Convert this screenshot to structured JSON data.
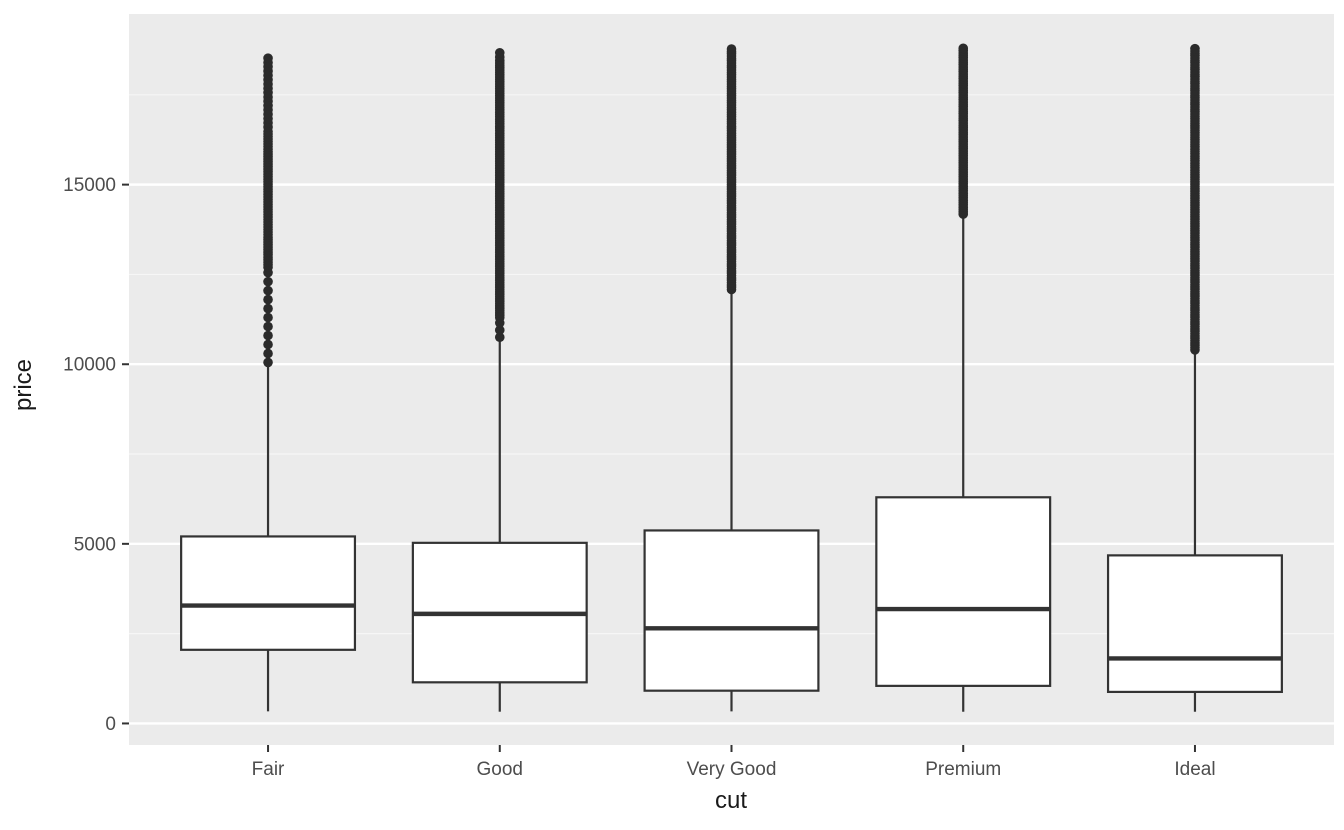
{
  "chart_data": {
    "type": "boxplot",
    "title": "",
    "xlabel": "cut",
    "ylabel": "price",
    "categories": [
      "Fair",
      "Good",
      "Very Good",
      "Premium",
      "Ideal"
    ],
    "y_ticks": [
      0,
      5000,
      10000,
      15000
    ],
    "ylim": [
      -600,
      19750
    ],
    "grid": {
      "major": [
        0,
        5000,
        10000,
        15000
      ],
      "minor": [
        2500,
        7500,
        12500,
        17500
      ]
    },
    "series": [
      {
        "category": "Fair",
        "lower_whisker": 337,
        "q1": 2050,
        "median": 3282,
        "q3": 5206,
        "upper_whisker": 9937,
        "outlier_segments": [
          {
            "from": 10050,
            "to": 12600,
            "gap": 250
          },
          {
            "from": 12700,
            "to": 16500,
            "gap": 70
          },
          {
            "from": 16600,
            "to": 18600,
            "gap": 120
          }
        ]
      },
      {
        "category": "Good",
        "lower_whisker": 327,
        "q1": 1145,
        "median": 3050,
        "q3": 5028,
        "upper_whisker": 10838,
        "outlier_segments": [
          {
            "from": 10750,
            "to": 11200,
            "gap": 200
          },
          {
            "from": 11300,
            "to": 18500,
            "gap": 65
          },
          {
            "from": 18550,
            "to": 18788,
            "gap": 120
          }
        ]
      },
      {
        "category": "Very Good",
        "lower_whisker": 336,
        "q1": 912,
        "median": 2648,
        "q3": 5373,
        "upper_whisker": 12061,
        "outlier_segments": [
          {
            "from": 12080,
            "to": 18818,
            "gap": 65
          }
        ]
      },
      {
        "category": "Premium",
        "lower_whisker": 326,
        "q1": 1046,
        "median": 3185,
        "q3": 6296,
        "upper_whisker": 14160,
        "outlier_segments": [
          {
            "from": 14180,
            "to": 18823,
            "gap": 65
          }
        ]
      },
      {
        "category": "Ideal",
        "lower_whisker": 326,
        "q1": 878,
        "median": 1810,
        "q3": 4679,
        "upper_whisker": 10372,
        "outlier_segments": [
          {
            "from": 10400,
            "to": 18806,
            "gap": 65
          }
        ]
      }
    ],
    "style": {
      "panel_bg": "#EBEBEB",
      "grid_major": "#FFFFFF",
      "grid_minor": "#F6F6F6",
      "box_fill": "#FFFFFF",
      "box_stroke": "#333333",
      "outlier_color": "#2B2B2B",
      "axis_tick_color": "#333333",
      "tick_label_color": "#4D4D4D",
      "axis_title_color": "#1A1A1A"
    }
  }
}
